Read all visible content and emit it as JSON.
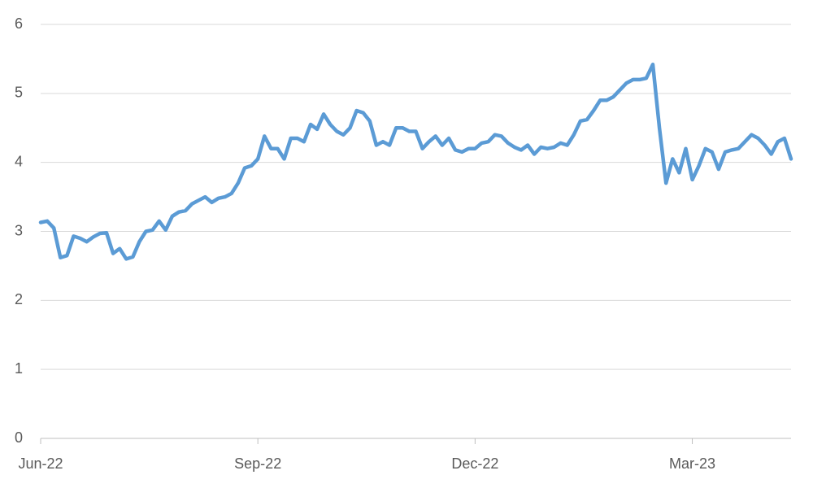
{
  "chart_data": {
    "type": "line",
    "categories": [
      "Jun-22",
      null,
      null,
      null,
      null,
      null,
      null,
      null,
      null,
      null,
      null,
      null,
      null,
      null,
      null,
      null,
      null,
      null,
      null,
      null,
      null,
      null,
      null,
      null,
      null,
      null,
      null,
      null,
      null,
      null,
      null,
      null,
      null,
      "Sep-22",
      null,
      null,
      null,
      null,
      null,
      null,
      null,
      null,
      null,
      null,
      null,
      null,
      null,
      null,
      null,
      null,
      null,
      null,
      null,
      null,
      null,
      null,
      null,
      null,
      null,
      null,
      null,
      null,
      null,
      null,
      null,
      null,
      "Dec-22",
      null,
      null,
      null,
      null,
      null,
      null,
      null,
      null,
      null,
      null,
      null,
      null,
      null,
      null,
      null,
      null,
      null,
      null,
      null,
      null,
      null,
      null,
      null,
      null,
      null,
      null,
      null,
      null,
      null,
      null,
      null,
      null,
      "Mar-23",
      null,
      null,
      null,
      null,
      null,
      null,
      null,
      null,
      null,
      null,
      null,
      null,
      null,
      null,
      null
    ],
    "series": [
      {
        "color": "#5b9bd5",
        "values": [
          3.13,
          3.15,
          3.05,
          2.62,
          2.65,
          2.93,
          2.9,
          2.85,
          2.92,
          2.97,
          2.98,
          2.68,
          2.75,
          2.6,
          2.63,
          2.85,
          3.0,
          3.02,
          3.15,
          3.02,
          3.22,
          3.28,
          3.3,
          3.4,
          3.45,
          3.5,
          3.42,
          3.48,
          3.5,
          3.55,
          3.7,
          3.92,
          3.95,
          4.05,
          4.38,
          4.2,
          4.2,
          4.05,
          4.35,
          4.35,
          4.3,
          4.55,
          4.48,
          4.7,
          4.55,
          4.45,
          4.4,
          4.5,
          4.75,
          4.72,
          4.6,
          4.25,
          4.3,
          4.25,
          4.5,
          4.5,
          4.45,
          4.45,
          4.2,
          4.3,
          4.38,
          4.25,
          4.35,
          4.18,
          4.15,
          4.2,
          4.2,
          4.28,
          4.3,
          4.4,
          4.38,
          4.28,
          4.22,
          4.18,
          4.25,
          4.12,
          4.22,
          4.2,
          4.22,
          4.28,
          4.25,
          4.4,
          4.6,
          4.62,
          4.75,
          4.9,
          4.9,
          4.95,
          5.05,
          5.15,
          5.2,
          5.2,
          5.22,
          5.42,
          4.5,
          3.7,
          4.05,
          3.85,
          4.2,
          3.75,
          3.95,
          4.2,
          4.15,
          3.9,
          4.15,
          4.18,
          4.2,
          4.3,
          4.4,
          4.35,
          4.25,
          4.12,
          4.3,
          4.35,
          4.05
        ]
      }
    ],
    "ylim": [
      0,
      6
    ],
    "yticks": [
      0,
      1,
      2,
      3,
      4,
      5,
      6
    ],
    "grid": true
  }
}
